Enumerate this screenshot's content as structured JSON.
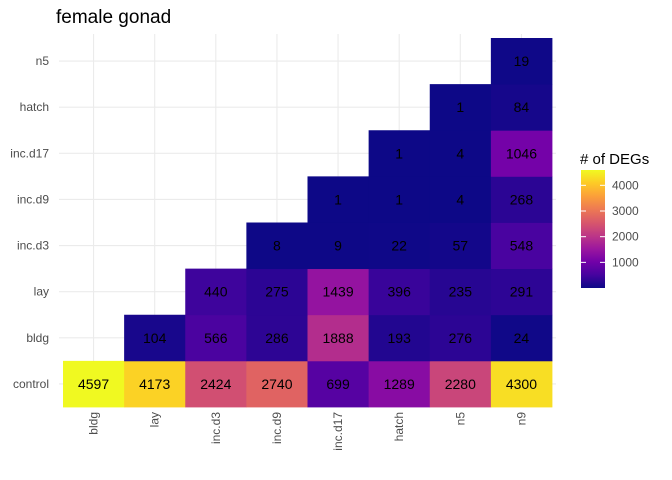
{
  "chart_data": {
    "type": "heatmap",
    "title": "female gonad",
    "xlabel": "",
    "ylabel": "",
    "x_categories": [
      "bldg",
      "lay",
      "inc.d3",
      "inc.d9",
      "inc.d17",
      "hatch",
      "n5",
      "n9"
    ],
    "y_categories": [
      "control",
      "bldg",
      "lay",
      "inc.d3",
      "inc.d9",
      "inc.d17",
      "hatch",
      "n5"
    ],
    "cells": [
      {
        "x": "bldg",
        "y": "control",
        "value": 4597
      },
      {
        "x": "lay",
        "y": "control",
        "value": 4173
      },
      {
        "x": "inc.d3",
        "y": "control",
        "value": 2424
      },
      {
        "x": "inc.d9",
        "y": "control",
        "value": 2740
      },
      {
        "x": "inc.d17",
        "y": "control",
        "value": 699
      },
      {
        "x": "hatch",
        "y": "control",
        "value": 1289
      },
      {
        "x": "n5",
        "y": "control",
        "value": 2280
      },
      {
        "x": "n9",
        "y": "control",
        "value": 4300
      },
      {
        "x": "lay",
        "y": "bldg",
        "value": 104
      },
      {
        "x": "inc.d3",
        "y": "bldg",
        "value": 566
      },
      {
        "x": "inc.d9",
        "y": "bldg",
        "value": 286
      },
      {
        "x": "inc.d17",
        "y": "bldg",
        "value": 1888
      },
      {
        "x": "hatch",
        "y": "bldg",
        "value": 193
      },
      {
        "x": "n5",
        "y": "bldg",
        "value": 276
      },
      {
        "x": "n9",
        "y": "bldg",
        "value": 24
      },
      {
        "x": "inc.d3",
        "y": "lay",
        "value": 440
      },
      {
        "x": "inc.d9",
        "y": "lay",
        "value": 275
      },
      {
        "x": "inc.d17",
        "y": "lay",
        "value": 1439
      },
      {
        "x": "hatch",
        "y": "lay",
        "value": 396
      },
      {
        "x": "n5",
        "y": "lay",
        "value": 235
      },
      {
        "x": "n9",
        "y": "lay",
        "value": 291
      },
      {
        "x": "inc.d9",
        "y": "inc.d3",
        "value": 8
      },
      {
        "x": "inc.d17",
        "y": "inc.d3",
        "value": 9
      },
      {
        "x": "hatch",
        "y": "inc.d3",
        "value": 22
      },
      {
        "x": "n5",
        "y": "inc.d3",
        "value": 57
      },
      {
        "x": "n9",
        "y": "inc.d3",
        "value": 548
      },
      {
        "x": "inc.d17",
        "y": "inc.d9",
        "value": 1
      },
      {
        "x": "hatch",
        "y": "inc.d9",
        "value": 1
      },
      {
        "x": "n5",
        "y": "inc.d9",
        "value": 4
      },
      {
        "x": "n9",
        "y": "inc.d9",
        "value": 268
      },
      {
        "x": "hatch",
        "y": "inc.d17",
        "value": 1
      },
      {
        "x": "n5",
        "y": "inc.d17",
        "value": 4
      },
      {
        "x": "n9",
        "y": "inc.d17",
        "value": 1046
      },
      {
        "x": "n5",
        "y": "hatch",
        "value": 1
      },
      {
        "x": "n9",
        "y": "hatch",
        "value": 84
      },
      {
        "x": "n9",
        "y": "n5",
        "value": 19
      }
    ],
    "color_scale": {
      "name": "plasma",
      "min": 1,
      "max": 4597,
      "stops": [
        "#0d0887",
        "#46039f",
        "#7201a8",
        "#9c179e",
        "#bd3786",
        "#d8576b",
        "#ed7953",
        "#fb9f3a",
        "#fdca26",
        "#f0f921"
      ]
    },
    "legend": {
      "title": "# of DEGs",
      "ticks": [
        1000,
        2000,
        3000,
        4000
      ],
      "tick_labels": [
        "1000",
        "2000",
        "3000",
        "4000"
      ],
      "position": "right"
    },
    "grid": true
  }
}
